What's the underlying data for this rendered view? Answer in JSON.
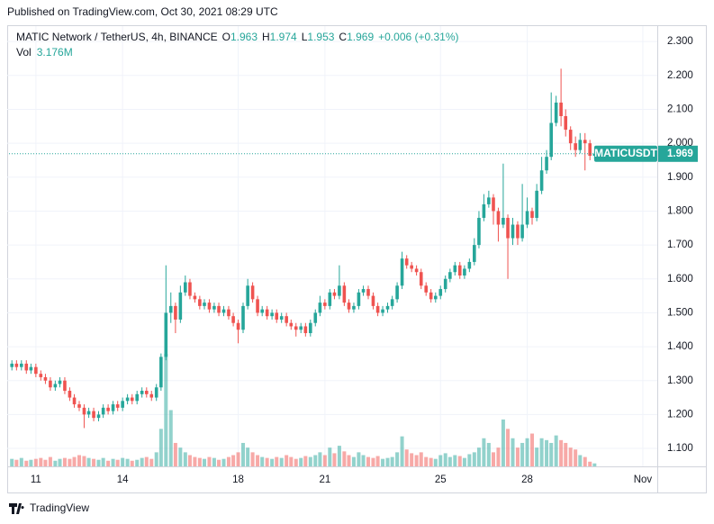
{
  "published": "Published on TradingView.com, Oct 30, 2021 08:29 UTC",
  "brand": "TradingView",
  "chart_data": {
    "type": "candlestick",
    "symbol": "MATIC Network / TetherUS, 4h, BINANCE",
    "o_label": "O",
    "h_label": "H",
    "l_label": "L",
    "c_label": "C",
    "change": "+0.006 (+0.31%)",
    "vol_label": "Vol",
    "vol_value": "3.176M",
    "ticker": "MATICUSDT",
    "up_color": "#26a69a",
    "down_color": "#ef5350",
    "grid": true,
    "xlim": [
      10.07,
      32.5
    ],
    "xticks": [
      11,
      14,
      18,
      21,
      25,
      28,
      {
        "value": 32,
        "label": "Nov"
      }
    ],
    "ylim": [
      1.047,
      2.396
    ],
    "yticks": [
      {
        "value": 1.1,
        "label": "1.100"
      },
      {
        "value": 1.2,
        "label": "1.200"
      },
      {
        "value": 1.3,
        "label": "1.300"
      },
      {
        "value": 1.4,
        "label": "1.400"
      },
      {
        "value": 1.5,
        "label": "1.500"
      },
      {
        "value": 1.6,
        "label": "1.600"
      },
      {
        "value": 1.7,
        "label": "1.700"
      },
      {
        "value": 1.8,
        "label": "1.800"
      },
      {
        "value": 1.9,
        "label": "1.900"
      },
      {
        "value": 2.0,
        "label": "2.000"
      },
      {
        "value": 2.1,
        "label": "2.100"
      },
      {
        "value": 2.2,
        "label": "2.200"
      },
      {
        "value": 2.3,
        "label": "2.300"
      }
    ],
    "x": [
      10.17,
      10.33,
      10.5,
      10.67,
      10.83,
      11,
      11.17,
      11.33,
      11.5,
      11.67,
      11.83,
      12,
      12.17,
      12.33,
      12.5,
      12.67,
      12.83,
      13,
      13.17,
      13.33,
      13.5,
      13.67,
      13.83,
      14,
      14.17,
      14.33,
      14.5,
      14.67,
      14.83,
      15,
      15.17,
      15.33,
      15.5,
      15.67,
      15.83,
      16,
      16.17,
      16.33,
      16.5,
      16.67,
      16.83,
      17,
      17.17,
      17.33,
      17.5,
      17.67,
      17.83,
      18,
      18.17,
      18.33,
      18.5,
      18.67,
      18.83,
      19,
      19.17,
      19.33,
      19.5,
      19.67,
      19.83,
      20,
      20.17,
      20.33,
      20.5,
      20.67,
      20.83,
      21,
      21.17,
      21.33,
      21.5,
      21.67,
      21.83,
      22,
      22.17,
      22.33,
      22.5,
      22.67,
      22.83,
      23,
      23.17,
      23.33,
      23.5,
      23.67,
      23.83,
      24,
      24.17,
      24.33,
      24.5,
      24.67,
      24.83,
      25,
      25.17,
      25.33,
      25.5,
      25.67,
      25.83,
      26,
      26.17,
      26.33,
      26.5,
      26.67,
      26.83,
      27,
      27.17,
      27.33,
      27.5,
      27.67,
      27.83,
      28,
      28.17,
      28.33,
      28.5,
      28.67,
      28.83,
      29,
      29.17,
      29.33,
      29.5,
      29.67,
      29.83,
      30,
      30.17,
      30.33
    ],
    "open": [
      1.34,
      1.35,
      1.34,
      1.35,
      1.33,
      1.34,
      1.32,
      1.31,
      1.3,
      1.28,
      1.29,
      1.3,
      1.27,
      1.25,
      1.23,
      1.22,
      1.2,
      1.21,
      1.19,
      1.2,
      1.22,
      1.21,
      1.23,
      1.22,
      1.24,
      1.25,
      1.24,
      1.26,
      1.27,
      1.26,
      1.25,
      1.28,
      1.37,
      1.5,
      1.52,
      1.48,
      1.56,
      1.59,
      1.55,
      1.54,
      1.52,
      1.53,
      1.51,
      1.52,
      1.5,
      1.51,
      1.49,
      1.47,
      1.45,
      1.52,
      1.58,
      1.54,
      1.5,
      1.51,
      1.49,
      1.5,
      1.48,
      1.49,
      1.47,
      1.46,
      1.45,
      1.46,
      1.44,
      1.47,
      1.5,
      1.53,
      1.52,
      1.56,
      1.55,
      1.58,
      1.53,
      1.51,
      1.52,
      1.56,
      1.57,
      1.55,
      1.52,
      1.5,
      1.51,
      1.52,
      1.54,
      1.58,
      1.66,
      1.64,
      1.63,
      1.62,
      1.58,
      1.56,
      1.54,
      1.55,
      1.57,
      1.6,
      1.62,
      1.64,
      1.61,
      1.63,
      1.65,
      1.7,
      1.78,
      1.82,
      1.84,
      1.8,
      1.76,
      1.78,
      1.72,
      1.76,
      1.72,
      1.76,
      1.8,
      1.78,
      1.86,
      1.92,
      1.96,
      2.06,
      2.12,
      2.08,
      2.04,
      2.0,
      1.98,
      2.01,
      2.0,
      1.963
    ],
    "high": [
      1.36,
      1.36,
      1.36,
      1.36,
      1.35,
      1.35,
      1.33,
      1.32,
      1.31,
      1.3,
      1.31,
      1.31,
      1.28,
      1.26,
      1.24,
      1.23,
      1.22,
      1.22,
      1.21,
      1.23,
      1.23,
      1.24,
      1.24,
      1.25,
      1.26,
      1.26,
      1.27,
      1.28,
      1.28,
      1.27,
      1.29,
      1.38,
      1.64,
      1.56,
      1.53,
      1.58,
      1.61,
      1.6,
      1.56,
      1.55,
      1.54,
      1.54,
      1.53,
      1.53,
      1.52,
      1.52,
      1.5,
      1.48,
      1.53,
      1.6,
      1.59,
      1.55,
      1.52,
      1.52,
      1.51,
      1.51,
      1.5,
      1.5,
      1.48,
      1.47,
      1.47,
      1.47,
      1.48,
      1.51,
      1.55,
      1.54,
      1.57,
      1.57,
      1.64,
      1.59,
      1.54,
      1.53,
      1.57,
      1.58,
      1.58,
      1.56,
      1.53,
      1.52,
      1.53,
      1.55,
      1.59,
      1.68,
      1.67,
      1.65,
      1.64,
      1.63,
      1.59,
      1.57,
      1.56,
      1.58,
      1.61,
      1.63,
      1.65,
      1.65,
      1.64,
      1.66,
      1.72,
      1.8,
      1.85,
      1.86,
      1.85,
      1.81,
      1.94,
      1.79,
      1.78,
      1.77,
      1.88,
      1.84,
      1.81,
      1.88,
      1.96,
      1.98,
      2.15,
      2.14,
      2.22,
      2.1,
      2.05,
      2.02,
      2.03,
      2.03,
      2.01,
      1.974
    ],
    "low": [
      1.33,
      1.33,
      1.33,
      1.32,
      1.32,
      1.31,
      1.3,
      1.29,
      1.27,
      1.27,
      1.28,
      1.26,
      1.24,
      1.22,
      1.21,
      1.16,
      1.19,
      1.18,
      1.18,
      1.19,
      1.2,
      1.2,
      1.21,
      1.21,
      1.23,
      1.23,
      1.23,
      1.25,
      1.25,
      1.24,
      1.24,
      1.27,
      1.36,
      1.47,
      1.44,
      1.47,
      1.55,
      1.54,
      1.53,
      1.51,
      1.51,
      1.5,
      1.5,
      1.49,
      1.49,
      1.48,
      1.46,
      1.41,
      1.44,
      1.51,
      1.53,
      1.49,
      1.49,
      1.48,
      1.48,
      1.47,
      1.47,
      1.46,
      1.45,
      1.43,
      1.44,
      1.43,
      1.43,
      1.46,
      1.49,
      1.51,
      1.51,
      1.54,
      1.54,
      1.52,
      1.5,
      1.5,
      1.51,
      1.55,
      1.54,
      1.51,
      1.49,
      1.49,
      1.5,
      1.51,
      1.53,
      1.57,
      1.63,
      1.62,
      1.61,
      1.57,
      1.55,
      1.53,
      1.53,
      1.54,
      1.56,
      1.59,
      1.61,
      1.6,
      1.6,
      1.62,
      1.64,
      1.69,
      1.77,
      1.81,
      1.76,
      1.71,
      1.75,
      1.6,
      1.7,
      1.7,
      1.71,
      1.75,
      1.76,
      1.77,
      1.85,
      1.91,
      1.95,
      2.05,
      2.05,
      2.02,
      1.98,
      1.96,
      1.97,
      1.92,
      1.95,
      1.953
    ],
    "close": [
      1.35,
      1.34,
      1.35,
      1.33,
      1.34,
      1.32,
      1.31,
      1.3,
      1.28,
      1.29,
      1.3,
      1.27,
      1.25,
      1.23,
      1.22,
      1.2,
      1.21,
      1.19,
      1.2,
      1.22,
      1.21,
      1.23,
      1.22,
      1.24,
      1.25,
      1.24,
      1.26,
      1.27,
      1.26,
      1.25,
      1.28,
      1.37,
      1.5,
      1.52,
      1.48,
      1.56,
      1.59,
      1.55,
      1.54,
      1.52,
      1.53,
      1.51,
      1.52,
      1.5,
      1.51,
      1.49,
      1.47,
      1.45,
      1.52,
      1.58,
      1.54,
      1.5,
      1.51,
      1.49,
      1.5,
      1.48,
      1.49,
      1.47,
      1.46,
      1.45,
      1.46,
      1.44,
      1.47,
      1.5,
      1.53,
      1.52,
      1.56,
      1.55,
      1.58,
      1.53,
      1.51,
      1.52,
      1.56,
      1.57,
      1.55,
      1.52,
      1.5,
      1.51,
      1.52,
      1.54,
      1.58,
      1.66,
      1.64,
      1.63,
      1.62,
      1.58,
      1.56,
      1.54,
      1.55,
      1.57,
      1.6,
      1.62,
      1.64,
      1.61,
      1.63,
      1.65,
      1.7,
      1.78,
      1.82,
      1.84,
      1.8,
      1.76,
      1.78,
      1.72,
      1.76,
      1.72,
      1.76,
      1.8,
      1.78,
      1.86,
      1.92,
      1.96,
      2.06,
      2.12,
      2.08,
      2.04,
      2.0,
      1.98,
      2.01,
      2.0,
      1.963,
      1.969
    ],
    "volume": [
      8,
      7,
      9,
      6,
      7,
      8,
      9,
      7,
      10,
      6,
      8,
      9,
      8,
      10,
      12,
      11,
      9,
      8,
      7,
      9,
      6,
      8,
      7,
      9,
      8,
      6,
      7,
      9,
      10,
      8,
      15,
      40,
      120,
      60,
      25,
      20,
      15,
      12,
      10,
      9,
      8,
      10,
      9,
      7,
      8,
      10,
      12,
      15,
      25,
      20,
      15,
      12,
      10,
      9,
      8,
      10,
      9,
      12,
      10,
      8,
      9,
      11,
      10,
      12,
      15,
      12,
      20,
      14,
      22,
      16,
      12,
      10,
      15,
      12,
      10,
      9,
      11,
      8,
      9,
      10,
      15,
      32,
      18,
      14,
      12,
      15,
      10,
      9,
      8,
      12,
      14,
      10,
      12,
      11,
      9,
      13,
      15,
      20,
      30,
      25,
      15,
      20,
      50,
      40,
      30,
      20,
      25,
      30,
      35,
      20,
      30,
      28,
      25,
      33,
      28,
      25,
      20,
      18,
      12,
      10,
      5,
      3.176
    ]
  }
}
